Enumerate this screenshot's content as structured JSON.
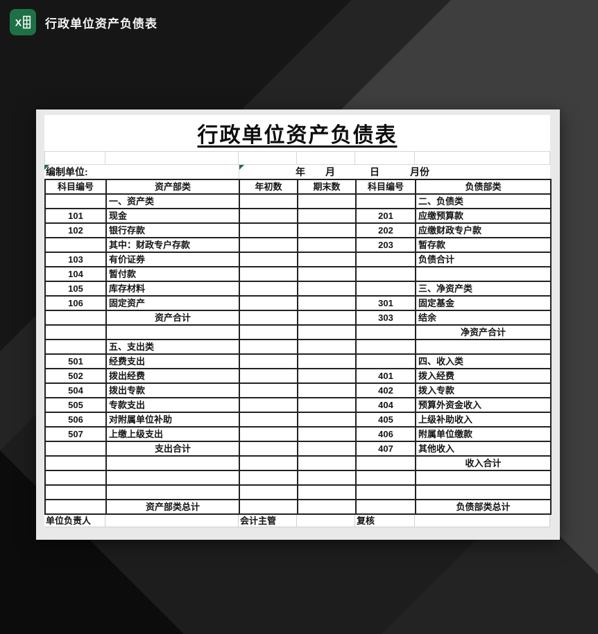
{
  "window": {
    "title": "行政单位资产负债表"
  },
  "sheet": {
    "title": "行政单位资产负债表",
    "prepared_by_label": "编制单位:",
    "date_row": {
      "year": "年",
      "month": "月",
      "day": "日",
      "period": "月份"
    },
    "columns": [
      "科目编号",
      "资产部类",
      "年初数",
      "期末数",
      "科目编号",
      "负债部类"
    ],
    "rows": [
      {
        "c2": "一、资产类",
        "c6": "二、负债类"
      },
      {
        "c1": "101",
        "c2": "现金",
        "c5": "201",
        "c6": "应缴预算款"
      },
      {
        "c1": "102",
        "c2": "银行存款",
        "c5": "202",
        "c6": "应缴财政专户款"
      },
      {
        "c2": "其中：财政专户存款",
        "c5": "203",
        "c6": "暂存款"
      },
      {
        "c1": "103",
        "c2": "有价证券",
        "c6": "负债合计"
      },
      {
        "c1": "104",
        "c2": "暂付款"
      },
      {
        "c1": "105",
        "c2": "库存材料",
        "c6": "三、净资产类"
      },
      {
        "c1": "106",
        "c2": "固定资产",
        "c5": "301",
        "c6": "固定基金"
      },
      {
        "c2": "资产合计",
        "a2": "center",
        "c5": "303",
        "c6": "结余"
      },
      {
        "c6": "净资产合计",
        "a6": "center"
      },
      {
        "c2": "五、支出类"
      },
      {
        "c1": "501",
        "c2": "经费支出",
        "c6": "四、收入类"
      },
      {
        "c1": "502",
        "c2": "拨出经费",
        "c5": "401",
        "c6": "拨入经费"
      },
      {
        "c1": "504",
        "c2": "拨出专款",
        "c5": "402",
        "c6": "拨入专款"
      },
      {
        "c1": "505",
        "c2": "专款支出",
        "c5": "404",
        "c6": "预算外资金收入"
      },
      {
        "c1": "506",
        "c2": "对附属单位补助",
        "c5": "405",
        "c6": "上级补助收入"
      },
      {
        "c1": "507",
        "c2": "上缴上级支出",
        "c5": "406",
        "c6": "附属单位缴款"
      },
      {
        "c2": "支出合计",
        "a2": "center",
        "c5": "407",
        "c6": "其他收入"
      },
      {
        "c6": "收入合计",
        "a6": "center"
      },
      {},
      {},
      {
        "c2": "资产部类总计",
        "a2": "center",
        "c6": "负债部类总计",
        "a6": "center"
      }
    ],
    "footer_cells": [
      "单位负责人",
      "",
      "会计主管",
      "",
      "复核",
      ""
    ]
  },
  "colors": {
    "excel_green": "#1e7145",
    "error_indicator_green": "#1e7145",
    "panel_margin": "#e9e9e9",
    "cell_border_dark": "#222222",
    "gridline_light": "#d6d6d6",
    "background_base": "#3e3e3e",
    "background_dark": "#1d1d1d"
  }
}
